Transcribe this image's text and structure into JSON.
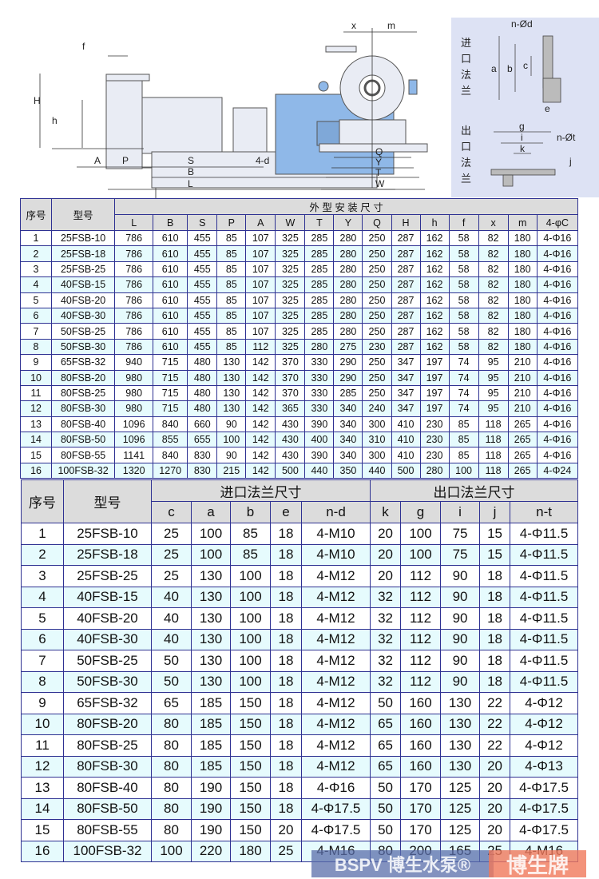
{
  "diagram": {
    "side_view_labels": [
      "f",
      "H",
      "h",
      "A",
      "P",
      "S",
      "4-d",
      "B",
      "L"
    ],
    "front_view_labels": [
      "x",
      "m",
      "Q",
      "Y",
      "T",
      "W"
    ],
    "inlet_flange_title": [
      "进",
      "口",
      "法",
      "兰"
    ],
    "outlet_flange_title": [
      "出",
      "口",
      "法",
      "兰"
    ],
    "inlet_flange_labels": [
      "n-Ød",
      "a",
      "b",
      "c",
      "e"
    ],
    "outlet_flange_labels": [
      "g",
      "i",
      "k",
      "n-Øt",
      "j"
    ],
    "motor_color": "#8fb8e8",
    "panel_color": "#dde2f4"
  },
  "table1": {
    "head_index": "序号",
    "head_model": "型号",
    "group_title": "外 型 安 装 尺 寸",
    "columns": [
      "L",
      "B",
      "S",
      "P",
      "A",
      "W",
      "T",
      "Y",
      "Q",
      "H",
      "h",
      "f",
      "x",
      "m",
      "4-φC"
    ],
    "rows": [
      [
        "1",
        "25FSB-10",
        "786",
        "610",
        "455",
        "85",
        "107",
        "325",
        "285",
        "280",
        "250",
        "287",
        "162",
        "58",
        "82",
        "180",
        "4-Φ16"
      ],
      [
        "2",
        "25FSB-18",
        "786",
        "610",
        "455",
        "85",
        "107",
        "325",
        "285",
        "280",
        "250",
        "287",
        "162",
        "58",
        "82",
        "180",
        "4-Φ16"
      ],
      [
        "3",
        "25FSB-25",
        "786",
        "610",
        "455",
        "85",
        "107",
        "325",
        "285",
        "280",
        "250",
        "287",
        "162",
        "58",
        "82",
        "180",
        "4-Φ16"
      ],
      [
        "4",
        "40FSB-15",
        "786",
        "610",
        "455",
        "85",
        "107",
        "325",
        "285",
        "280",
        "250",
        "287",
        "162",
        "58",
        "82",
        "180",
        "4-Φ16"
      ],
      [
        "5",
        "40FSB-20",
        "786",
        "610",
        "455",
        "85",
        "107",
        "325",
        "285",
        "280",
        "250",
        "287",
        "162",
        "58",
        "82",
        "180",
        "4-Φ16"
      ],
      [
        "6",
        "40FSB-30",
        "786",
        "610",
        "455",
        "85",
        "107",
        "325",
        "285",
        "280",
        "250",
        "287",
        "162",
        "58",
        "82",
        "180",
        "4-Φ16"
      ],
      [
        "7",
        "50FSB-25",
        "786",
        "610",
        "455",
        "85",
        "107",
        "325",
        "285",
        "280",
        "250",
        "287",
        "162",
        "58",
        "82",
        "180",
        "4-Φ16"
      ],
      [
        "8",
        "50FSB-30",
        "786",
        "610",
        "455",
        "85",
        "112",
        "325",
        "280",
        "275",
        "230",
        "287",
        "162",
        "58",
        "82",
        "180",
        "4-Φ16"
      ],
      [
        "9",
        "65FSB-32",
        "940",
        "715",
        "480",
        "130",
        "142",
        "370",
        "330",
        "290",
        "250",
        "347",
        "197",
        "74",
        "95",
        "210",
        "4-Φ16"
      ],
      [
        "10",
        "80FSB-20",
        "980",
        "715",
        "480",
        "130",
        "142",
        "370",
        "330",
        "290",
        "250",
        "347",
        "197",
        "74",
        "95",
        "210",
        "4-Φ16"
      ],
      [
        "11",
        "80FSB-25",
        "980",
        "715",
        "480",
        "130",
        "142",
        "370",
        "330",
        "285",
        "250",
        "347",
        "197",
        "74",
        "95",
        "210",
        "4-Φ16"
      ],
      [
        "12",
        "80FSB-30",
        "980",
        "715",
        "480",
        "130",
        "142",
        "365",
        "330",
        "340",
        "240",
        "347",
        "197",
        "74",
        "95",
        "210",
        "4-Φ16"
      ],
      [
        "13",
        "80FSB-40",
        "1096",
        "840",
        "660",
        "90",
        "142",
        "430",
        "390",
        "340",
        "300",
        "410",
        "230",
        "85",
        "118",
        "265",
        "4-Φ16"
      ],
      [
        "14",
        "80FSB-50",
        "1096",
        "855",
        "655",
        "100",
        "142",
        "430",
        "400",
        "340",
        "310",
        "410",
        "230",
        "85",
        "118",
        "265",
        "4-Φ16"
      ],
      [
        "15",
        "80FSB-55",
        "1141",
        "840",
        "830",
        "90",
        "142",
        "430",
        "390",
        "340",
        "300",
        "410",
        "230",
        "85",
        "118",
        "265",
        "4-Φ16"
      ],
      [
        "16",
        "100FSB-32",
        "1320",
        "1270",
        "830",
        "215",
        "142",
        "500",
        "440",
        "350",
        "440",
        "500",
        "280",
        "100",
        "118",
        "265",
        "4-Φ24"
      ]
    ]
  },
  "table2": {
    "head_index": "序号",
    "head_model": "型号",
    "inlet_title": "进口法兰尺寸",
    "outlet_title": "出口法兰尺寸",
    "columns": [
      "c",
      "a",
      "b",
      "e",
      "n-d",
      "k",
      "g",
      "i",
      "j",
      "n-t"
    ],
    "rows": [
      [
        "1",
        "25FSB-10",
        "25",
        "100",
        "85",
        "18",
        "4-M10",
        "20",
        "100",
        "75",
        "15",
        "4-Φ11.5"
      ],
      [
        "2",
        "25FSB-18",
        "25",
        "100",
        "85",
        "18",
        "4-M10",
        "20",
        "100",
        "75",
        "15",
        "4-Φ11.5"
      ],
      [
        "3",
        "25FSB-25",
        "25",
        "130",
        "100",
        "18",
        "4-M12",
        "20",
        "112",
        "90",
        "18",
        "4-Φ11.5"
      ],
      [
        "4",
        "40FSB-15",
        "40",
        "130",
        "100",
        "18",
        "4-M12",
        "32",
        "112",
        "90",
        "18",
        "4-Φ11.5"
      ],
      [
        "5",
        "40FSB-20",
        "40",
        "130",
        "100",
        "18",
        "4-M12",
        "32",
        "112",
        "90",
        "18",
        "4-Φ11.5"
      ],
      [
        "6",
        "40FSB-30",
        "40",
        "130",
        "100",
        "18",
        "4-M12",
        "32",
        "112",
        "90",
        "18",
        "4-Φ11.5"
      ],
      [
        "7",
        "50FSB-25",
        "50",
        "130",
        "100",
        "18",
        "4-M12",
        "32",
        "112",
        "90",
        "18",
        "4-Φ11.5"
      ],
      [
        "8",
        "50FSB-30",
        "50",
        "130",
        "100",
        "18",
        "4-M12",
        "32",
        "112",
        "90",
        "18",
        "4-Φ11.5"
      ],
      [
        "9",
        "65FSB-32",
        "65",
        "185",
        "150",
        "18",
        "4-M12",
        "50",
        "160",
        "130",
        "22",
        "4-Φ12"
      ],
      [
        "10",
        "80FSB-20",
        "80",
        "185",
        "150",
        "18",
        "4-M12",
        "65",
        "160",
        "130",
        "22",
        "4-Φ12"
      ],
      [
        "11",
        "80FSB-25",
        "80",
        "185",
        "150",
        "18",
        "4-M12",
        "65",
        "160",
        "130",
        "22",
        "4-Φ12"
      ],
      [
        "12",
        "80FSB-30",
        "80",
        "185",
        "150",
        "18",
        "4-M12",
        "65",
        "160",
        "130",
        "20",
        "4-Φ13"
      ],
      [
        "13",
        "80FSB-40",
        "80",
        "190",
        "150",
        "18",
        "4-Φ16",
        "50",
        "170",
        "125",
        "20",
        "4-Φ17.5"
      ],
      [
        "14",
        "80FSB-50",
        "80",
        "190",
        "150",
        "18",
        "4-Φ17.5",
        "50",
        "170",
        "125",
        "20",
        "4-Φ17.5"
      ],
      [
        "15",
        "80FSB-55",
        "80",
        "190",
        "150",
        "20",
        "4-Φ17.5",
        "50",
        "170",
        "125",
        "20",
        "4-Φ17.5"
      ],
      [
        "16",
        "100FSB-32",
        "100",
        "220",
        "180",
        "25",
        "4-M16",
        "80",
        "200",
        "165",
        "25",
        "4-M16"
      ]
    ]
  },
  "watermark": {
    "brand_left": "BSPV 博生水泵®",
    "brand_right": "博生牌"
  },
  "colors": {
    "border": "#2e3192",
    "header_bg": "#dcdcdc",
    "alt_row_bg": "#e6fbfd"
  }
}
